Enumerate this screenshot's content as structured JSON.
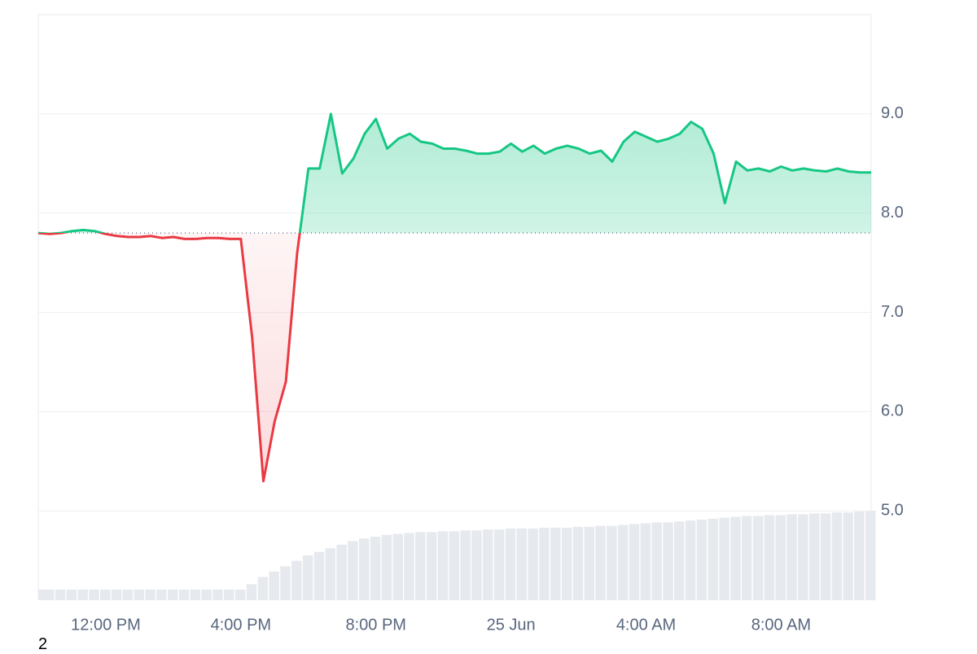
{
  "chart_data": {
    "type": "line",
    "categories": [
      null,
      null,
      null,
      null,
      null,
      null,
      "12:00 PM",
      null,
      null,
      null,
      null,
      null,
      null,
      null,
      null,
      null,
      null,
      null,
      "4:00 PM",
      null,
      null,
      null,
      null,
      null,
      null,
      null,
      null,
      null,
      null,
      null,
      "8:00 PM",
      null,
      null,
      null,
      null,
      null,
      null,
      null,
      null,
      null,
      null,
      null,
      "25 Jun",
      null,
      null,
      null,
      null,
      null,
      null,
      null,
      null,
      null,
      null,
      null,
      "4:00 AM",
      null,
      null,
      null,
      null,
      null,
      null,
      null,
      null,
      null,
      null,
      null,
      "8:00 AM",
      null,
      null,
      null,
      null,
      null,
      null,
      null,
      null
    ],
    "series": [
      {
        "values": [
          7.8,
          7.79,
          7.8,
          7.82,
          7.83,
          7.82,
          7.79,
          7.77,
          7.76,
          7.76,
          7.77,
          7.75,
          7.76,
          7.74,
          7.74,
          7.75,
          7.75,
          7.74,
          7.74,
          6.75,
          5.3,
          5.9,
          6.3,
          7.6,
          8.45,
          8.45,
          9.0,
          8.4,
          8.55,
          8.8,
          8.95,
          8.65,
          8.75,
          8.8,
          8.72,
          8.7,
          8.65,
          8.65,
          8.63,
          8.6,
          8.6,
          8.62,
          8.7,
          8.62,
          8.68,
          8.6,
          8.65,
          8.68,
          8.65,
          8.6,
          8.63,
          8.52,
          8.72,
          8.82,
          8.77,
          8.72,
          8.75,
          8.8,
          8.92,
          8.85,
          8.6,
          8.1,
          8.52,
          8.43,
          8.45,
          8.42,
          8.47,
          8.43,
          8.45,
          8.43,
          8.42,
          8.45,
          8.42,
          8.41,
          8.41
        ]
      }
    ],
    "volume": [
      12,
      12,
      12,
      12,
      12,
      12,
      12,
      12,
      12,
      12,
      12,
      12,
      12,
      12,
      12,
      12,
      12,
      12,
      12,
      18,
      26,
      32,
      38,
      44,
      50,
      54,
      58,
      62,
      66,
      69,
      71,
      73,
      74,
      75,
      76,
      76,
      77,
      77,
      78,
      78,
      79,
      79,
      80,
      80,
      80,
      81,
      81,
      81,
      82,
      82,
      83,
      83,
      84,
      85,
      86,
      87,
      87,
      88,
      89,
      90,
      91,
      92,
      93,
      94,
      94,
      95,
      95,
      96,
      96,
      97,
      97,
      98,
      98,
      99,
      100
    ],
    "baseline": 7.8,
    "up_color": "#16c784",
    "down_color": "#ea3943",
    "volume_color": "#e6e9ee",
    "ylim": [
      4.1,
      10.0
    ],
    "yticks": [
      {
        "value": 5,
        "label": "5.0"
      },
      {
        "value": 6,
        "label": "6.0"
      },
      {
        "value": 7,
        "label": "7.0"
      },
      {
        "value": 8,
        "label": "8.0"
      },
      {
        "value": 9,
        "label": "9.0"
      }
    ],
    "grid": true,
    "footnote": "2"
  }
}
